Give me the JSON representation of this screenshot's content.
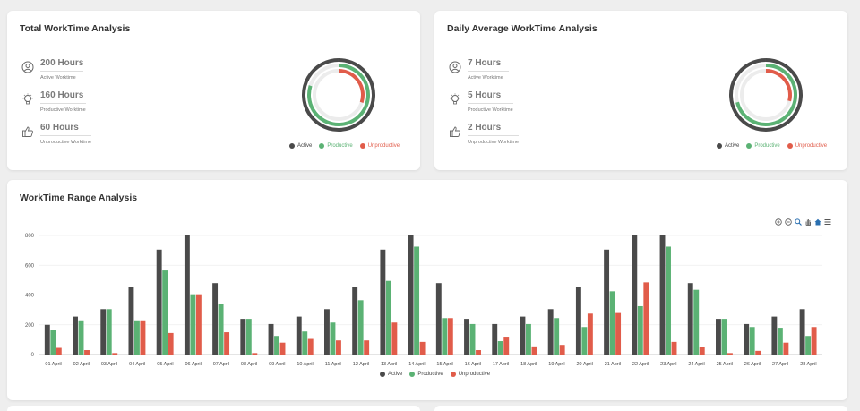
{
  "colors": {
    "active": "#4a4a4a",
    "productive": "#5bb274",
    "unproductive": "#e15c4a"
  },
  "total": {
    "title": "Total WorkTime Analysis",
    "stats": [
      {
        "value": "200 Hours",
        "label": "Active Worktime",
        "icon": "user-icon"
      },
      {
        "value": "160 Hours",
        "label": "Productive Worktime",
        "icon": "lightbulb-icon"
      },
      {
        "value": "60 Hours",
        "label": "Unproductive Worktime",
        "icon": "thumbs-down-icon"
      }
    ],
    "ring_fractions": {
      "active": 1.0,
      "productive": 0.8,
      "unproductive": 0.3
    }
  },
  "daily": {
    "title": "Daily Average WorkTime Analysis",
    "stats": [
      {
        "value": "7 Hours",
        "label": "Active Worktime",
        "icon": "user-icon"
      },
      {
        "value": "5 Hours",
        "label": "Productive Worktime",
        "icon": "lightbulb-icon"
      },
      {
        "value": "2 Hours",
        "label": "Unproductive Worktime",
        "icon": "thumbs-down-icon"
      }
    ],
    "ring_fractions": {
      "active": 1.0,
      "productive": 0.71,
      "unproductive": 0.29
    }
  },
  "legend": {
    "active": "Active",
    "productive": "Productive",
    "unproductive": "Unproductive"
  },
  "range": {
    "title": "WorkTime Range Analysis",
    "toolbar": [
      "zoom-in-icon",
      "zoom-out-icon",
      "magnify-icon",
      "pan-icon",
      "home-icon",
      "menu-icon"
    ]
  },
  "chart_data": {
    "type": "bar",
    "title": "WorkTime Range Analysis",
    "ylim": [
      0,
      800
    ],
    "yticks": [
      0,
      200,
      400,
      600,
      800
    ],
    "grid": true,
    "legend_position": "bottom",
    "categories": [
      "01 April",
      "02 April",
      "03 April",
      "04 April",
      "05 April",
      "06 April",
      "07 April",
      "08 April",
      "09 April",
      "10 April",
      "11 April",
      "12 April",
      "13 April",
      "14 April",
      "15 April",
      "16 April",
      "17 April",
      "18 April",
      "19 April",
      "20 April",
      "21 April",
      "22 April",
      "23 April",
      "24 April",
      "25 April",
      "26 April",
      "27 April",
      "28 April"
    ],
    "series": [
      {
        "name": "Active",
        "values": [
          200,
          255,
          305,
          455,
          705,
          800,
          480,
          240,
          205,
          255,
          305,
          455,
          705,
          800,
          480,
          240,
          205,
          255,
          305,
          455,
          705,
          800,
          800,
          480,
          240,
          205,
          255,
          305
        ]
      },
      {
        "name": "Productive",
        "values": [
          165,
          230,
          305,
          230,
          565,
          405,
          340,
          240,
          125,
          155,
          215,
          365,
          495,
          725,
          245,
          205,
          90,
          205,
          245,
          185,
          425,
          325,
          725,
          435,
          240,
          185,
          180,
          125
        ]
      },
      {
        "name": "Unproductive",
        "values": [
          45,
          30,
          10,
          230,
          145,
          405,
          150,
          10,
          80,
          105,
          95,
          95,
          215,
          85,
          245,
          30,
          120,
          55,
          65,
          275,
          285,
          485,
          85,
          50,
          10,
          25,
          80,
          185
        ]
      }
    ]
  }
}
